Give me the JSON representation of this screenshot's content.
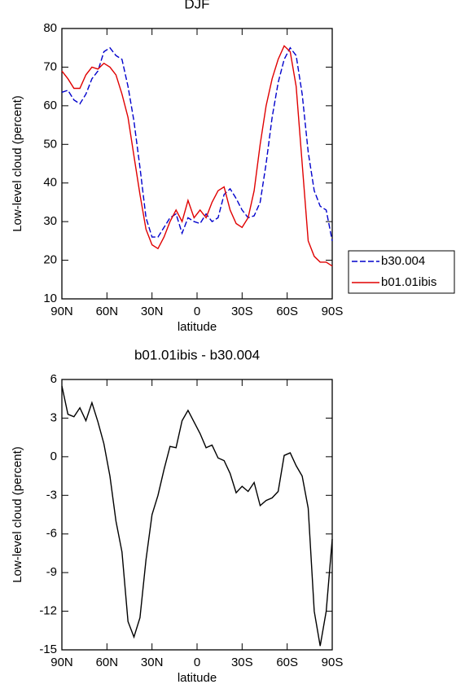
{
  "chart_data": [
    {
      "type": "line",
      "title": "DJF",
      "x_label": "latitude",
      "y_label": "Low-level cloud (percent)",
      "x": [
        90,
        86,
        82,
        78,
        74,
        70,
        66,
        62,
        58,
        54,
        50,
        46,
        42,
        38,
        34,
        30,
        26,
        22,
        18,
        14,
        10,
        6,
        2,
        -2,
        -6,
        -10,
        -14,
        -18,
        -22,
        -26,
        -30,
        -34,
        -38,
        -42,
        -46,
        -50,
        -54,
        -58,
        -62,
        -66,
        -70,
        -74,
        -78,
        -82,
        -86,
        -90
      ],
      "series": [
        {
          "name": "b30.004",
          "color": "#0000cc",
          "linestyle": "dashed",
          "values": [
            63.5,
            64,
            61.5,
            60.5,
            63,
            67,
            69,
            74,
            75,
            73,
            72,
            65,
            56,
            44,
            31,
            26,
            26,
            28.5,
            31,
            32,
            27,
            31,
            30,
            29.5,
            32,
            30,
            31,
            37,
            38.5,
            36,
            33,
            31,
            31.5,
            35,
            45,
            57,
            66,
            72,
            75,
            73,
            63,
            48,
            38,
            34,
            33,
            25
          ]
        },
        {
          "name": "b01.01ibis",
          "color": "#e00000",
          "linestyle": "solid",
          "values": [
            69,
            67,
            64.5,
            64.5,
            68,
            70,
            69.5,
            71,
            70,
            68,
            63,
            57,
            47,
            37,
            28,
            24,
            23,
            26,
            30,
            33,
            30,
            35.5,
            31,
            33,
            31,
            35,
            38,
            39,
            33,
            29.5,
            28.5,
            31,
            38,
            50,
            60,
            67,
            72,
            75.5,
            74,
            65,
            45,
            25,
            21,
            19.5,
            19.5,
            18.5
          ]
        }
      ],
      "xlim": [
        90,
        -90
      ],
      "xticks": [
        {
          "value": 90,
          "label": "90N"
        },
        {
          "value": 60,
          "label": "60N"
        },
        {
          "value": 30,
          "label": "30N"
        },
        0,
        {
          "value": -30,
          "label": "30S"
        },
        {
          "value": -60,
          "label": "60S"
        },
        {
          "value": -90,
          "label": "90S"
        }
      ],
      "ylim": [
        10,
        80
      ],
      "yticks": [
        10,
        20,
        30,
        40,
        50,
        60,
        70,
        80
      ],
      "legend": "right"
    },
    {
      "type": "line",
      "title": "b01.01ibis - b30.004",
      "x_label": "latitude",
      "y_label": "Low-level cloud (percent)",
      "x": [
        90,
        86,
        82,
        78,
        74,
        70,
        66,
        62,
        58,
        54,
        50,
        46,
        42,
        38,
        34,
        30,
        26,
        22,
        18,
        14,
        10,
        6,
        2,
        -2,
        -6,
        -10,
        -14,
        -18,
        -22,
        -26,
        -30,
        -34,
        -38,
        -42,
        -46,
        -50,
        -54,
        -58,
        -62,
        -66,
        -70,
        -74,
        -78,
        -82,
        -86,
        -90
      ],
      "values": [
        5.5,
        3.3,
        3.1,
        3.8,
        2.8,
        4.2,
        2.7,
        1,
        -1.5,
        -5,
        -7.4,
        -12.8,
        -14,
        -12.5,
        -8,
        -4.5,
        -3,
        -1,
        0.8,
        0.7,
        2.8,
        3.6,
        2.7,
        1.8,
        0.7,
        0.9,
        -0.1,
        -0.3,
        -1.3,
        -2.8,
        -2.3,
        -2.7,
        -2,
        -3.8,
        -3.4,
        -3.2,
        -2.7,
        0.1,
        0.3,
        -0.7,
        -1.5,
        -4,
        -12,
        -14.7,
        -12,
        -6.4
      ],
      "color": "#000000",
      "xlim": [
        90,
        -90
      ],
      "xticks": [
        {
          "value": 90,
          "label": "90N"
        },
        {
          "value": 60,
          "label": "60N"
        },
        {
          "value": 30,
          "label": "30N"
        },
        0,
        {
          "value": -30,
          "label": "30S"
        },
        {
          "value": -60,
          "label": "60S"
        },
        {
          "value": -90,
          "label": "90S"
        }
      ],
      "ylim": [
        -15,
        6
      ],
      "yticks": [
        -15,
        -12,
        -9,
        -6,
        -3,
        0,
        3,
        6
      ]
    }
  ]
}
